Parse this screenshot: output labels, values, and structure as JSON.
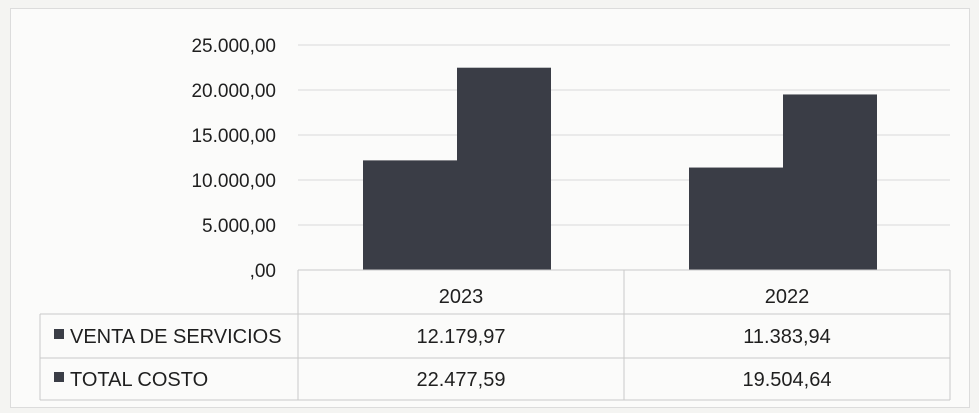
{
  "chart_data": {
    "type": "bar",
    "categories": [
      "2023",
      "2022"
    ],
    "series": [
      {
        "name": "VENTA DE SERVICIOS",
        "values": [
          12179.97,
          11383.94
        ],
        "labels": [
          "12.179,97",
          "11.383,94"
        ]
      },
      {
        "name": "TOTAL COSTO",
        "values": [
          22477.59,
          19504.64
        ],
        "labels": [
          "22.477,59",
          "19.504,64"
        ]
      }
    ],
    "ylim": [
      0,
      25000
    ],
    "y_ticks": [
      0,
      5000,
      10000,
      15000,
      20000,
      25000
    ],
    "y_tick_labels": [
      ",00",
      "5.000,00",
      "10.000,00",
      "15.000,00",
      "20.000,00",
      "25.000,00"
    ],
    "data_table": true,
    "legend": "in data table",
    "grid": true,
    "colors": {
      "bar": "#3a3d46",
      "grid": "#d9d9d9",
      "legend_marker": "#3a3d46"
    }
  }
}
